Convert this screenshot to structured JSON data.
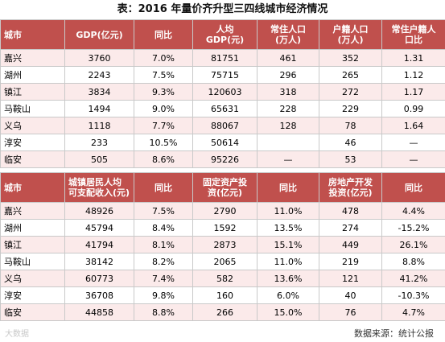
{
  "title": "表：2016 年量价齐升型三四线城市经济情况",
  "table1": {
    "headers": [
      "城市",
      "GDP(亿元)",
      "同比",
      "人均\nGDP(元)",
      "常住人口\n(万人)",
      "户籍人口\n(万人)",
      "常住户籍人\n口比"
    ],
    "rows": [
      [
        "嘉兴",
        "3760",
        "7.0%",
        "81751",
        "461",
        "352",
        "1.31"
      ],
      [
        "湖州",
        "2243",
        "7.5%",
        "75715",
        "296",
        "265",
        "1.12"
      ],
      [
        "镇江",
        "3834",
        "9.3%",
        "120603",
        "318",
        "272",
        "1.17"
      ],
      [
        "马鞍山",
        "1494",
        "9.0%",
        "65631",
        "228",
        "229",
        "0.99"
      ],
      [
        "义乌",
        "1118",
        "7.7%",
        "88067",
        "128",
        "78",
        "1.64"
      ],
      [
        "淳安",
        "233",
        "10.5%",
        "50614",
        "",
        "46",
        "—"
      ],
      [
        "临安",
        "505",
        "8.6%",
        "95226",
        "—",
        "53",
        "—"
      ]
    ]
  },
  "table2": {
    "headers": [
      "城市",
      "城镇居民人均\n可支配收入(元)",
      "同比",
      "固定资产投\n资(亿元)",
      "同比",
      "房地产开发\n投资(亿元)",
      "同比"
    ],
    "rows": [
      [
        "嘉兴",
        "48926",
        "7.5%",
        "2790",
        "11.0%",
        "478",
        "4.4%"
      ],
      [
        "湖州",
        "45794",
        "8.4%",
        "1592",
        "13.5%",
        "274",
        "-15.2%"
      ],
      [
        "镇江",
        "41794",
        "8.1%",
        "2873",
        "15.1%",
        "449",
        "26.1%"
      ],
      [
        "马鞍山",
        "38142",
        "8.2%",
        "2065",
        "11.0%",
        "219",
        "8.8%"
      ],
      [
        "义乌",
        "60773",
        "7.4%",
        "582",
        "13.6%",
        "121",
        "41.2%"
      ],
      [
        "淳安",
        "36708",
        "9.8%",
        "160",
        "6.0%",
        "40",
        "-10.3%"
      ],
      [
        "临安",
        "44858",
        "8.8%",
        "266",
        "15.0%",
        "76",
        "4.7%"
      ]
    ]
  },
  "source": "数据来源：统计公报",
  "watermark": "大数据"
}
